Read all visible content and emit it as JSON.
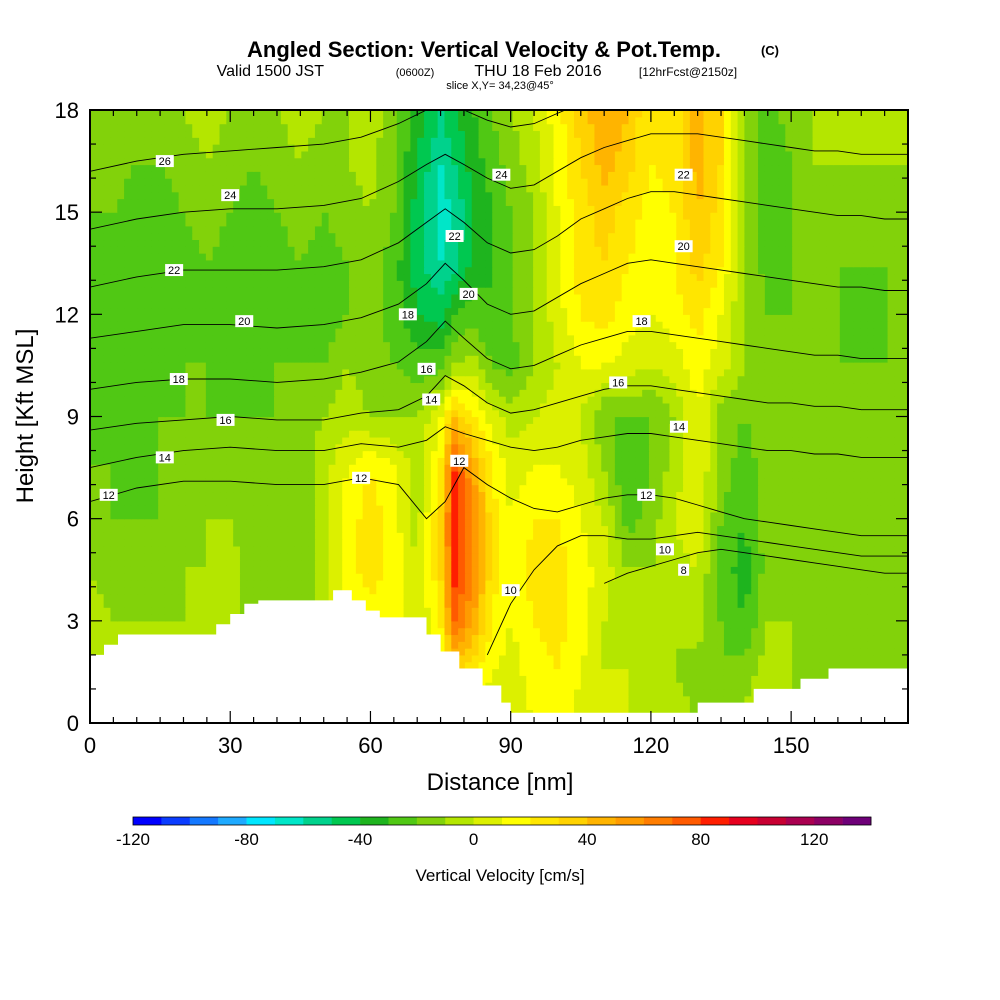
{
  "title": {
    "main": "Angled Section: Vertical Velocity & Pot.Temp.",
    "main_unit": "(C)",
    "valid_prefix": "Valid 1500 JST",
    "valid_zulu": "(0600Z)",
    "valid_date": "THU 18 Feb 2016",
    "forecast": "[12hrFcst@2150z]",
    "slice": "slice X,Y= 34,23@45°"
  },
  "chart_data": {
    "type": "heatmap",
    "xlabel": "Distance [nm]",
    "ylabel": "Height [Kft MSL]",
    "xlim": [
      0,
      175
    ],
    "ylim": [
      0,
      18
    ],
    "x_ticks": [
      "0",
      "30",
      "60",
      "90",
      "120",
      "150"
    ],
    "y_ticks": [
      "0",
      "3",
      "6",
      "9",
      "12",
      "15",
      "18"
    ],
    "vertical_velocity_field": {
      "unit": "cm/s",
      "x": [
        0,
        5,
        10,
        15,
        20,
        25,
        30,
        35,
        40,
        45,
        50,
        55,
        60,
        65,
        70,
        75,
        78,
        82,
        86,
        90,
        95,
        100,
        105,
        110,
        115,
        120,
        125,
        130,
        135,
        140,
        145,
        150,
        155,
        160,
        165,
        170,
        175
      ],
      "y": [
        0,
        1.5,
        3,
        4.5,
        6,
        7.5,
        9,
        10.5,
        12,
        13.5,
        15,
        16.5,
        18
      ],
      "values": [
        [
          0,
          0,
          0,
          0,
          0,
          0,
          0,
          0,
          0,
          0,
          0,
          0,
          0,
          0,
          0,
          0,
          0,
          0,
          5,
          5,
          10,
          15,
          5,
          0,
          0,
          0,
          -5,
          -10,
          -10,
          -5,
          -5,
          -10,
          -10,
          -10,
          -10,
          -10,
          -10
        ],
        [
          -5,
          -5,
          -5,
          -5,
          0,
          0,
          -5,
          -5,
          -5,
          -10,
          0,
          10,
          10,
          10,
          0,
          10,
          30,
          20,
          10,
          5,
          15,
          20,
          10,
          0,
          0,
          -5,
          -10,
          -15,
          -20,
          -15,
          -5,
          -10,
          -15,
          -20,
          -20,
          -15,
          -15
        ],
        [
          -5,
          -10,
          -10,
          -10,
          -10,
          -10,
          -5,
          -15,
          -10,
          -15,
          -5,
          10,
          15,
          15,
          0,
          20,
          70,
          50,
          20,
          10,
          20,
          25,
          15,
          0,
          -5,
          -5,
          -10,
          -5,
          -20,
          -30,
          -10,
          -10,
          -15,
          -20,
          -20,
          -15,
          -15
        ],
        [
          -10,
          -15,
          -15,
          -15,
          -10,
          -10,
          -5,
          -15,
          -15,
          -15,
          -5,
          15,
          25,
          15,
          0,
          30,
          85,
          60,
          25,
          10,
          25,
          25,
          15,
          5,
          -10,
          -10,
          -5,
          0,
          -25,
          -35,
          -15,
          -10,
          -15,
          -20,
          -20,
          -15,
          -15
        ],
        [
          -15,
          -20,
          -20,
          -20,
          -15,
          -10,
          -10,
          -20,
          -15,
          -15,
          -5,
          15,
          25,
          15,
          -5,
          30,
          90,
          60,
          25,
          10,
          20,
          20,
          10,
          0,
          -25,
          -15,
          0,
          10,
          -20,
          -30,
          -15,
          -10,
          -15,
          -20,
          -15,
          -15,
          -15
        ],
        [
          -20,
          -20,
          -25,
          -20,
          -15,
          -15,
          -10,
          -20,
          -15,
          -15,
          -5,
          10,
          20,
          10,
          -5,
          20,
          80,
          50,
          20,
          5,
          10,
          10,
          5,
          -10,
          -30,
          -20,
          -5,
          10,
          -15,
          -25,
          -15,
          -10,
          -20,
          -20,
          -15,
          -15,
          -15
        ],
        [
          -25,
          -30,
          -25,
          -20,
          -20,
          -20,
          -20,
          -20,
          -20,
          -15,
          -10,
          -5,
          -10,
          -10,
          -10,
          10,
          40,
          20,
          5,
          -5,
          0,
          5,
          0,
          -20,
          -20,
          -20,
          -10,
          10,
          -15,
          -20,
          -15,
          -15,
          -20,
          -20,
          -15,
          -20,
          -20
        ],
        [
          -30,
          -30,
          -30,
          -25,
          -20,
          -20,
          -25,
          -25,
          -20,
          -20,
          -20,
          -10,
          -15,
          -20,
          -25,
          -25,
          -10,
          -5,
          -20,
          -25,
          -10,
          0,
          10,
          10,
          5,
          0,
          5,
          15,
          5,
          -10,
          -15,
          -20,
          -20,
          -20,
          -20,
          -20,
          -20
        ],
        [
          -30,
          -25,
          -30,
          -30,
          -25,
          -20,
          -25,
          -30,
          -25,
          -20,
          -25,
          -20,
          -15,
          -25,
          -40,
          -45,
          -30,
          -25,
          -30,
          -20,
          -10,
          5,
          20,
          25,
          15,
          10,
          15,
          25,
          10,
          -10,
          -20,
          -20,
          -20,
          -20,
          -25,
          -20,
          -20
        ],
        [
          -25,
          -25,
          -30,
          -30,
          -25,
          -20,
          -25,
          -30,
          -25,
          -20,
          -25,
          -20,
          -15,
          -25,
          -45,
          -60,
          -55,
          -35,
          -30,
          -20,
          -10,
          10,
          25,
          30,
          20,
          15,
          20,
          35,
          20,
          -10,
          -25,
          -20,
          -15,
          -20,
          -20,
          -20,
          -20
        ],
        [
          -20,
          -20,
          -25,
          -25,
          -20,
          -15,
          -20,
          -25,
          -20,
          -15,
          -20,
          -15,
          -10,
          -20,
          -45,
          -65,
          -60,
          -40,
          -30,
          -20,
          -10,
          10,
          25,
          35,
          25,
          15,
          20,
          40,
          25,
          -10,
          -30,
          -20,
          -15,
          -15,
          -15,
          -15,
          -15
        ],
        [
          -15,
          -15,
          -20,
          -20,
          -15,
          -10,
          -15,
          -20,
          -15,
          -10,
          -15,
          -10,
          -5,
          -20,
          -40,
          -60,
          -50,
          -35,
          -25,
          -15,
          -5,
          15,
          30,
          45,
          35,
          20,
          25,
          45,
          30,
          -10,
          -30,
          -20,
          -10,
          -10,
          -10,
          -10,
          -10
        ],
        [
          -10,
          -10,
          -15,
          -15,
          -10,
          -5,
          -10,
          -15,
          -10,
          -5,
          -10,
          -10,
          -5,
          -15,
          -35,
          -50,
          -40,
          -30,
          -20,
          -10,
          0,
          15,
          35,
          50,
          40,
          20,
          25,
          45,
          30,
          -10,
          -25,
          -15,
          -10,
          -10,
          -10,
          -10,
          -10
        ]
      ]
    },
    "terrain": {
      "x": [
        0,
        3,
        3,
        6,
        6,
        27,
        27,
        30,
        30,
        33,
        33,
        36,
        36,
        52,
        52,
        56,
        56,
        59,
        59,
        62,
        62,
        72,
        72,
        75,
        75,
        79,
        79,
        84,
        84,
        88,
        88,
        90,
        90,
        95,
        95,
        109,
        109,
        112,
        112,
        130,
        130,
        142,
        142,
        152,
        152,
        158,
        158,
        175
      ],
      "h": [
        2.0,
        2.0,
        2.3,
        2.3,
        2.6,
        2.6,
        2.9,
        2.9,
        3.2,
        3.2,
        3.5,
        3.5,
        3.6,
        3.6,
        3.9,
        3.9,
        3.6,
        3.6,
        3.3,
        3.3,
        3.1,
        3.1,
        2.6,
        2.6,
        2.1,
        2.1,
        1.6,
        1.6,
        1.1,
        1.1,
        0.6,
        0.6,
        0.3,
        0.3,
        0.3,
        0.3,
        0.3,
        0.3,
        0.3,
        0.3,
        0.6,
        0.6,
        1.0,
        1.0,
        1.3,
        1.3,
        1.6,
        1.6
      ]
    },
    "isentropes": {
      "unit": "C",
      "x": [
        0,
        10,
        20,
        30,
        40,
        50,
        58,
        66,
        72,
        76,
        80,
        85,
        90,
        95,
        100,
        105,
        110,
        115,
        120,
        125,
        130,
        135,
        140,
        145,
        150,
        155,
        160,
        165,
        170,
        175
      ],
      "lines": [
        {
          "theta": 8,
          "y": [
            null,
            null,
            null,
            null,
            null,
            null,
            null,
            null,
            null,
            null,
            null,
            null,
            null,
            null,
            null,
            null,
            4.1,
            4.4,
            4.6,
            4.8,
            5.0,
            5.1,
            5.0,
            4.9,
            4.8,
            4.7,
            4.6,
            4.5,
            4.4,
            4.4
          ]
        },
        {
          "theta": 10,
          "y": [
            null,
            null,
            null,
            null,
            null,
            null,
            null,
            null,
            null,
            null,
            null,
            2.0,
            3.5,
            4.5,
            5.2,
            5.5,
            5.5,
            5.4,
            5.4,
            5.5,
            5.6,
            5.5,
            5.4,
            5.3,
            5.2,
            5.1,
            5.0,
            4.9,
            4.9,
            4.9
          ]
        },
        {
          "theta": 12,
          "y": [
            6.5,
            6.9,
            7.1,
            7.1,
            7.0,
            7.0,
            7.2,
            7.0,
            6.0,
            6.5,
            7.5,
            7.0,
            6.6,
            6.3,
            6.2,
            6.4,
            6.6,
            6.7,
            6.7,
            6.6,
            6.4,
            6.2,
            6.0,
            5.9,
            5.8,
            5.7,
            5.6,
            5.5,
            5.5,
            5.5
          ]
        },
        {
          "theta": 14,
          "y": [
            7.5,
            7.8,
            8.0,
            8.1,
            8.0,
            8.0,
            8.2,
            8.1,
            8.3,
            8.7,
            8.5,
            8.3,
            8.1,
            8.0,
            8.1,
            8.3,
            8.4,
            8.5,
            8.5,
            8.4,
            8.3,
            8.2,
            8.1,
            8.0,
            8.0,
            7.9,
            7.9,
            7.8,
            7.8,
            7.8
          ]
        },
        {
          "theta": 16,
          "y": [
            8.6,
            8.8,
            8.9,
            9.0,
            8.9,
            8.9,
            9.1,
            9.2,
            9.6,
            10.2,
            9.9,
            9.4,
            9.1,
            9.2,
            9.4,
            9.6,
            9.8,
            9.9,
            9.9,
            9.8,
            9.7,
            9.6,
            9.5,
            9.4,
            9.4,
            9.3,
            9.3,
            9.2,
            9.2,
            9.2
          ]
        },
        {
          "theta": 18,
          "y": [
            9.8,
            10.0,
            10.1,
            10.1,
            10.0,
            10.1,
            10.3,
            10.6,
            11.2,
            11.8,
            11.3,
            10.7,
            10.4,
            10.5,
            10.8,
            11.1,
            11.3,
            11.5,
            11.5,
            11.4,
            11.3,
            11.2,
            11.1,
            11.0,
            10.9,
            10.8,
            10.8,
            10.7,
            10.7,
            10.7
          ]
        },
        {
          "theta": 20,
          "y": [
            11.3,
            11.5,
            11.7,
            11.7,
            11.6,
            11.7,
            11.9,
            12.3,
            12.9,
            13.5,
            13.0,
            12.3,
            12.0,
            12.1,
            12.5,
            12.9,
            13.2,
            13.5,
            13.6,
            13.5,
            13.4,
            13.3,
            13.2,
            13.1,
            13.0,
            12.9,
            12.8,
            12.8,
            12.7,
            12.7
          ]
        },
        {
          "theta": 22,
          "y": [
            12.8,
            13.1,
            13.3,
            13.3,
            13.3,
            13.4,
            13.6,
            14.1,
            14.7,
            15.1,
            14.7,
            14.1,
            13.8,
            13.9,
            14.3,
            14.8,
            15.1,
            15.4,
            15.6,
            15.6,
            15.5,
            15.4,
            15.3,
            15.2,
            15.1,
            15.0,
            14.9,
            14.9,
            14.8,
            14.8
          ]
        },
        {
          "theta": 24,
          "y": [
            14.5,
            14.8,
            15.0,
            15.1,
            15.1,
            15.2,
            15.4,
            15.9,
            16.4,
            16.7,
            16.4,
            16.0,
            15.7,
            15.8,
            16.2,
            16.6,
            16.9,
            17.1,
            17.3,
            17.3,
            17.3,
            17.2,
            17.1,
            17.0,
            16.9,
            16.8,
            16.8,
            16.7,
            16.7,
            16.7
          ]
        },
        {
          "theta": 26,
          "y": [
            16.2,
            16.5,
            16.7,
            16.8,
            16.9,
            17.0,
            17.2,
            17.6,
            18.0,
            18.2,
            18.0,
            17.7,
            17.5,
            17.6,
            17.9,
            18.2,
            18.4,
            18.6,
            18.7,
            18.7,
            18.7,
            18.6,
            18.5,
            18.5,
            18.4,
            18.4,
            18.3,
            18.3,
            18.3,
            18.3
          ]
        }
      ],
      "labels": [
        {
          "theta": "26",
          "x": 16,
          "y": 16.5
        },
        {
          "theta": "24",
          "x": 30,
          "y": 15.5
        },
        {
          "theta": "22",
          "x": 18,
          "y": 13.3
        },
        {
          "theta": "20",
          "x": 33,
          "y": 11.8
        },
        {
          "theta": "18",
          "x": 19,
          "y": 10.1
        },
        {
          "theta": "16",
          "x": 29,
          "y": 8.9
        },
        {
          "theta": "14",
          "x": 16,
          "y": 7.8
        },
        {
          "theta": "12",
          "x": 4,
          "y": 6.7
        },
        {
          "theta": "12",
          "x": 58,
          "y": 7.2
        },
        {
          "theta": "18",
          "x": 68,
          "y": 12.0
        },
        {
          "theta": "16",
          "x": 72,
          "y": 10.4
        },
        {
          "theta": "14",
          "x": 73,
          "y": 9.5
        },
        {
          "theta": "12",
          "x": 79,
          "y": 7.7
        },
        {
          "theta": "22",
          "x": 78,
          "y": 14.3
        },
        {
          "theta": "20",
          "x": 81,
          "y": 12.6
        },
        {
          "theta": "24",
          "x": 88,
          "y": 16.1
        },
        {
          "theta": "18",
          "x": 118,
          "y": 11.8
        },
        {
          "theta": "16",
          "x": 113,
          "y": 10.0
        },
        {
          "theta": "14",
          "x": 126,
          "y": 8.7
        },
        {
          "theta": "12",
          "x": 119,
          "y": 6.7
        },
        {
          "theta": "10",
          "x": 123,
          "y": 5.1
        },
        {
          "theta": "8",
          "x": 127,
          "y": 4.5
        },
        {
          "theta": "10",
          "x": 90,
          "y": 3.9
        },
        {
          "theta": "20",
          "x": 127,
          "y": 14.0
        },
        {
          "theta": "22",
          "x": 127,
          "y": 16.1
        }
      ]
    },
    "colorbar": {
      "title": "Vertical Velocity [cm/s]",
      "min": -120,
      "max": 140,
      "step": 10,
      "tick_labels": [
        "-120",
        "-80",
        "-40",
        "0",
        "40",
        "80",
        "120"
      ],
      "colors": [
        "#0000ff",
        "#0a3cff",
        "#1478ff",
        "#1eaaff",
        "#00e6ff",
        "#00e6c8",
        "#00d28c",
        "#00c850",
        "#1eb41e",
        "#50c814",
        "#82d20a",
        "#b4e600",
        "#dcf000",
        "#ffff00",
        "#ffe600",
        "#ffd200",
        "#ffb400",
        "#ff9b00",
        "#ff7d00",
        "#ff5a00",
        "#ff1e00",
        "#e6001e",
        "#c80032",
        "#aa0050",
        "#8c0064",
        "#6e0078"
      ]
    }
  }
}
